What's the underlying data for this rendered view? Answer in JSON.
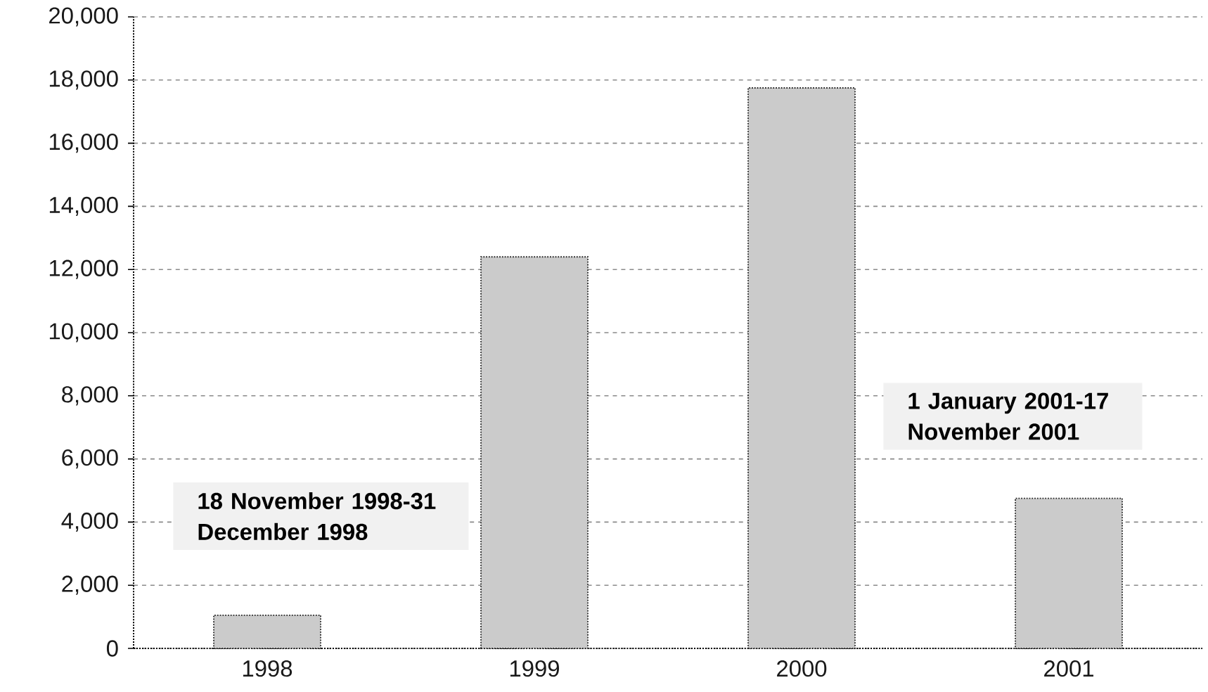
{
  "chart_data": {
    "type": "bar",
    "categories": [
      "1998",
      "1999",
      "2000",
      "2001"
    ],
    "values": [
      1050,
      12400,
      17750,
      4750
    ],
    "color": "#cbcbcb",
    "ylim": [
      0,
      20000
    ],
    "yticks": [
      0,
      {
        "value": 2000,
        "label": "2,000"
      },
      {
        "value": 4000,
        "label": "4,000"
      },
      {
        "value": 6000,
        "label": "6,000"
      },
      {
        "value": 8000,
        "label": "8,000"
      },
      {
        "value": 10000,
        "label": "10,000"
      },
      {
        "value": 12000,
        "label": "12,000"
      },
      {
        "value": 14000,
        "label": "14,000"
      },
      {
        "value": 16000,
        "label": "16,000"
      },
      {
        "value": 18000,
        "label": "18,000"
      },
      {
        "value": 20000,
        "label": "20,000"
      }
    ],
    "grid": "y",
    "annotations": [
      "18 November 1998-31 December 1998",
      "1 January 2001-17 November 2001"
    ]
  }
}
